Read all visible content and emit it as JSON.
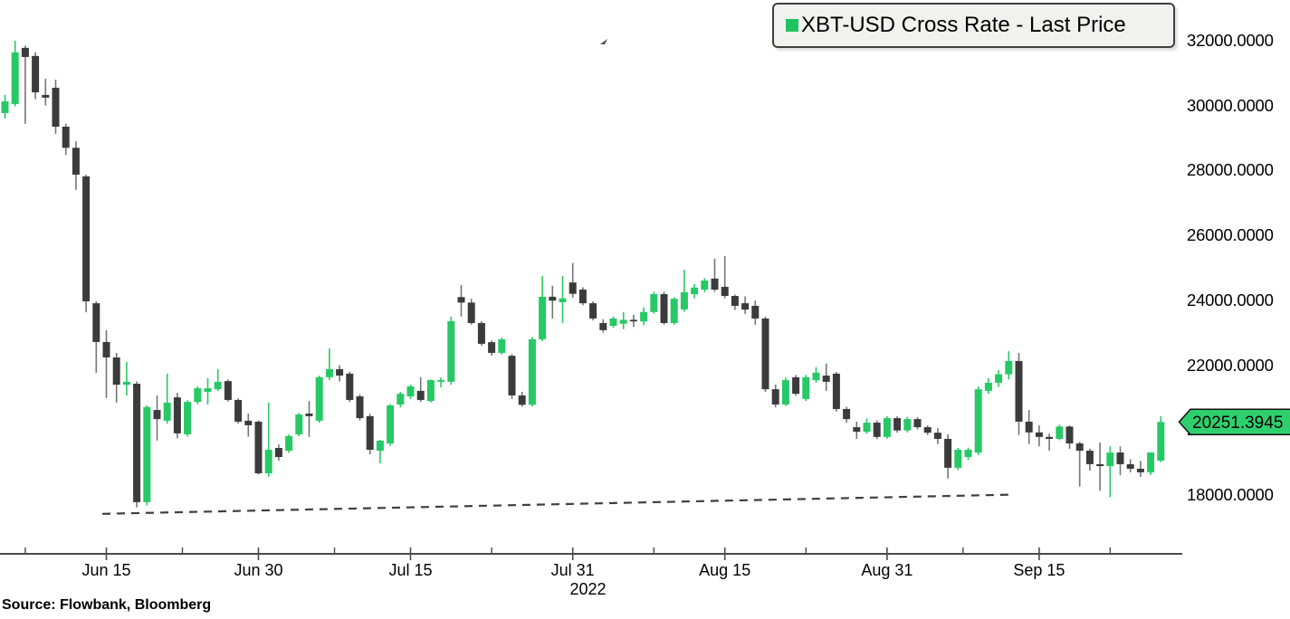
{
  "legend": {
    "label": "XBT-USD Cross Rate - Last Price",
    "swatch_color": "#1fc261"
  },
  "source_text": "Source: Flowbank, Bloomberg",
  "chart_data": {
    "type": "candlestick",
    "title": "XBT-USD Cross Rate - Last Price",
    "start_date": "2022-06-05",
    "end_date": "2022-09-27",
    "grid": "off",
    "legend_position": "top-right",
    "y_axis": {
      "side": "right",
      "tick_prices": [
        32000,
        30000,
        28000,
        26000,
        24000,
        22000,
        20000,
        18000
      ],
      "decimals": 4,
      "range_top": 32000,
      "range_bottom": 17000
    },
    "x_axis": {
      "major_ticks": [
        {
          "label": "Jun 15",
          "index": 10
        },
        {
          "label": "Jun 30",
          "index": 25
        },
        {
          "label": "Jul 15",
          "index": 40
        },
        {
          "label": "Jul 31",
          "index": 56
        },
        {
          "label": "Aug 15",
          "index": 71
        },
        {
          "label": "Aug 31",
          "index": 87
        },
        {
          "label": "Sep 15",
          "index": 102
        }
      ],
      "minor_tick_indices": [
        2,
        17.5,
        32.5,
        48,
        64,
        79,
        94.5,
        109
      ],
      "year_label": {
        "text": "2022",
        "index": 57.5
      }
    },
    "last_price": {
      "value": 20251.3945,
      "label": "20251.3945",
      "tag_color": "#2ed06e"
    },
    "trendline": {
      "style": "dashed",
      "start": {
        "index": 9.6,
        "price": 17420
      },
      "end": {
        "index": 99,
        "price": 18010
      }
    },
    "colors": {
      "up": "#26c965",
      "down": "#3b3b3b",
      "down_wick": "#757575",
      "axis": "#4a4a4a",
      "trendline": "#3f3f3f",
      "text": "#000000"
    },
    "candles_format": [
      "open",
      "high",
      "low",
      "close"
    ],
    "candles": [
      [
        29770,
        30330,
        29600,
        30130
      ],
      [
        30050,
        32000,
        29980,
        31640
      ],
      [
        31780,
        31850,
        29440,
        31500
      ],
      [
        31530,
        31640,
        30200,
        30410
      ],
      [
        30330,
        30830,
        30000,
        30245
      ],
      [
        30550,
        30800,
        29130,
        29350
      ],
      [
        29350,
        29440,
        28480,
        28700
      ],
      [
        28700,
        28900,
        27400,
        27870
      ],
      [
        27820,
        27870,
        23630,
        23970
      ],
      [
        23910,
        23970,
        21770,
        22715
      ],
      [
        22715,
        23080,
        20990,
        22240
      ],
      [
        22240,
        22380,
        20850,
        21400
      ],
      [
        21400,
        22100,
        21070,
        21490
      ],
      [
        21430,
        21500,
        17620,
        17780
      ],
      [
        17780,
        20760,
        17680,
        20710
      ],
      [
        20620,
        21070,
        19680,
        20340
      ],
      [
        20290,
        21740,
        20200,
        20845
      ],
      [
        21010,
        21150,
        19750,
        19900
      ],
      [
        19870,
        20920,
        19800,
        20870
      ],
      [
        20870,
        21350,
        20800,
        21290
      ],
      [
        21180,
        21600,
        20790,
        21290
      ],
      [
        21260,
        21880,
        21200,
        21490
      ],
      [
        21510,
        21560,
        20880,
        20930
      ],
      [
        20930,
        20980,
        20200,
        20260
      ],
      [
        20290,
        20510,
        19800,
        20150
      ],
      [
        20260,
        20300,
        18630,
        18670
      ],
      [
        18670,
        20850,
        18560,
        19395
      ],
      [
        19450,
        19560,
        19060,
        19170
      ],
      [
        19365,
        19870,
        19300,
        19815
      ],
      [
        19870,
        20530,
        19810,
        20480
      ],
      [
        20510,
        20900,
        19790,
        20430
      ],
      [
        20290,
        21680,
        20230,
        21630
      ],
      [
        21630,
        22520,
        21540,
        21880
      ],
      [
        21880,
        22000,
        21500,
        21680
      ],
      [
        21740,
        21800,
        20870,
        20930
      ],
      [
        21040,
        21100,
        20300,
        20370
      ],
      [
        20430,
        20500,
        19250,
        19395
      ],
      [
        19365,
        19700,
        18980,
        19675
      ],
      [
        19590,
        20800,
        19520,
        20760
      ],
      [
        20790,
        21180,
        20700,
        21120
      ],
      [
        21040,
        21400,
        20960,
        21350
      ],
      [
        21210,
        21630,
        20870,
        20930
      ],
      [
        20900,
        21560,
        20850,
        21540
      ],
      [
        21490,
        21620,
        21320,
        21540
      ],
      [
        21490,
        23500,
        21400,
        23360
      ],
      [
        24100,
        24470,
        23500,
        23930
      ],
      [
        23930,
        24050,
        23250,
        23300
      ],
      [
        23300,
        23360,
        22600,
        22660
      ],
      [
        22710,
        22760,
        22300,
        22380
      ],
      [
        22380,
        22850,
        22330,
        22800
      ],
      [
        22290,
        22340,
        20960,
        21070
      ],
      [
        21070,
        21180,
        20720,
        20780
      ],
      [
        20780,
        22870,
        20730,
        22800
      ],
      [
        22800,
        24750,
        22740,
        24110
      ],
      [
        24110,
        24450,
        23440,
        23990
      ],
      [
        23940,
        24750,
        23300,
        24060
      ],
      [
        24550,
        25150,
        24080,
        24200
      ],
      [
        24330,
        24400,
        23850,
        23910
      ],
      [
        23910,
        23970,
        23380,
        23440
      ],
      [
        23300,
        23420,
        23000,
        23080
      ],
      [
        23215,
        23500,
        23150,
        23440
      ],
      [
        23280,
        23640,
        23110,
        23400
      ],
      [
        23400,
        23560,
        23180,
        23350
      ],
      [
        23350,
        23780,
        23230,
        23640
      ],
      [
        23640,
        24260,
        23590,
        24190
      ],
      [
        24190,
        24260,
        23250,
        23300
      ],
      [
        23300,
        24100,
        23250,
        24050
      ],
      [
        23720,
        24940,
        23650,
        24250
      ],
      [
        24190,
        24500,
        24060,
        24390
      ],
      [
        24330,
        24680,
        24250,
        24610
      ],
      [
        24670,
        25280,
        24260,
        24330
      ],
      [
        24415,
        25360,
        24060,
        24135
      ],
      [
        24135,
        24180,
        23700,
        23830
      ],
      [
        23910,
        24120,
        23580,
        23715
      ],
      [
        23830,
        23990,
        23250,
        23440
      ],
      [
        23440,
        23500,
        21180,
        21260
      ],
      [
        21260,
        21400,
        20700,
        20790
      ],
      [
        20790,
        21620,
        20740,
        21540
      ],
      [
        21630,
        21700,
        21060,
        21120
      ],
      [
        20960,
        21700,
        20900,
        21630
      ],
      [
        21540,
        21940,
        21460,
        21770
      ],
      [
        21680,
        22050,
        21210,
        21490
      ],
      [
        21740,
        21790,
        20570,
        20650
      ],
      [
        20650,
        20720,
        20230,
        20340
      ],
      [
        20090,
        20260,
        19730,
        19950
      ],
      [
        19950,
        20360,
        19890,
        20230
      ],
      [
        20230,
        20300,
        19720,
        19790
      ],
      [
        19790,
        20430,
        19740,
        20370
      ],
      [
        20370,
        20430,
        19920,
        19990
      ],
      [
        19990,
        20410,
        19930,
        20340
      ],
      [
        20340,
        20400,
        20020,
        20090
      ],
      [
        20090,
        20150,
        19850,
        19920
      ],
      [
        19920,
        20060,
        19570,
        19730
      ],
      [
        19730,
        19870,
        18510,
        18840
      ],
      [
        18840,
        19450,
        18770,
        19395
      ],
      [
        19170,
        19460,
        19080,
        19395
      ],
      [
        19310,
        21350,
        19230,
        21260
      ],
      [
        21210,
        21600,
        21120,
        21460
      ],
      [
        21460,
        21850,
        21330,
        21720
      ],
      [
        21720,
        22430,
        21560,
        22130
      ],
      [
        22130,
        22380,
        19850,
        20260
      ],
      [
        20260,
        20620,
        19570,
        19930
      ],
      [
        19930,
        20150,
        19500,
        19790
      ],
      [
        19790,
        19890,
        19360,
        19730
      ],
      [
        19730,
        20170,
        19690,
        20110
      ],
      [
        20110,
        20140,
        19420,
        19590
      ],
      [
        19590,
        19640,
        18260,
        19365
      ],
      [
        19365,
        19430,
        18750,
        18950
      ],
      [
        18950,
        19620,
        18130,
        18890
      ],
      [
        18890,
        19500,
        17930,
        19310
      ],
      [
        19310,
        19500,
        18610,
        18950
      ],
      [
        18950,
        19100,
        18700,
        18810
      ],
      [
        18810,
        19050,
        18560,
        18700
      ],
      [
        18700,
        19320,
        18620,
        19310
      ],
      [
        19060,
        20430,
        19010,
        20251.39
      ]
    ]
  }
}
